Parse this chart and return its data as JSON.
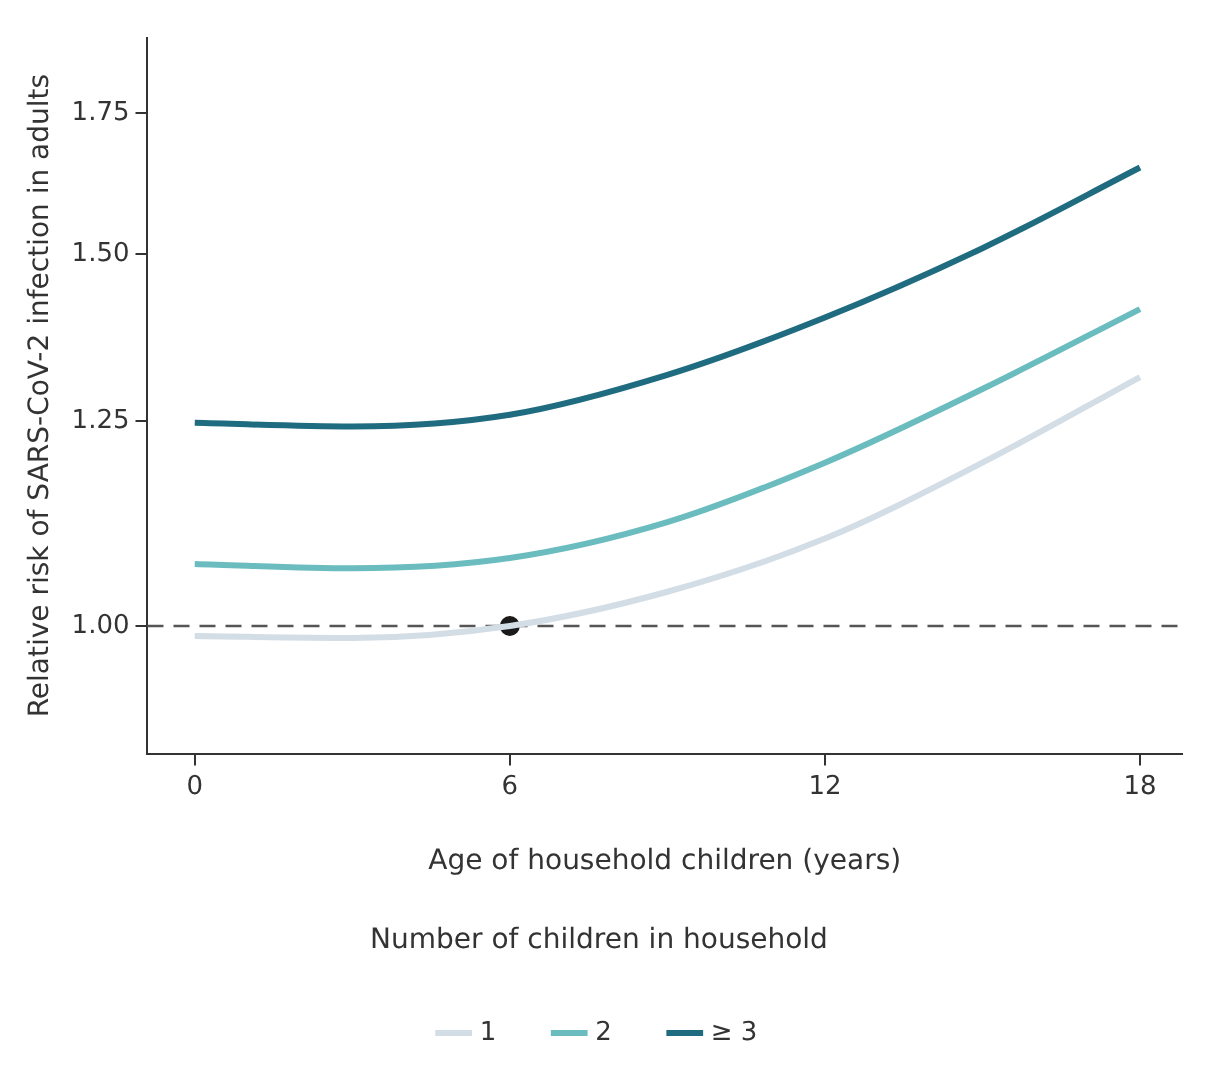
{
  "chart_data": {
    "type": "line",
    "xlabel": "Age of household children (years)",
    "ylabel": "Relative risk of SARS-CoV-2 infection in adults",
    "legend_title": "Number of children in household",
    "legend": "bottom",
    "log": "y",
    "grid": false,
    "line_style": "solid",
    "marker": "none",
    "xlim": [
      -0.9,
      18.8
    ],
    "xticks": [
      0,
      6,
      12,
      18
    ],
    "ylim": [
      0.87,
      1.9
    ],
    "yticks": [
      {
        "value": 1,
        "label": "1.00"
      },
      {
        "value": 1.25,
        "label": "1.25"
      },
      {
        "value": 1.5,
        "label": "1.50"
      },
      {
        "value": 1.75,
        "label": "1.75"
      }
    ],
    "ref_lines": [
      {
        "axis": "y",
        "value": 1,
        "color": "#555555",
        "line_style": "dashed"
      }
    ],
    "series": [
      {
        "name": "1",
        "color": "#d3dde6",
        "x": [
          0,
          3,
          6,
          9,
          12,
          15,
          18
        ],
        "values": [
          0.989,
          0.987,
          1.0,
          1.038,
          1.1,
          1.195,
          1.312
        ]
      },
      {
        "name": "2",
        "color": "#6bbcbf",
        "x": [
          0,
          3,
          6,
          9,
          12,
          15,
          18
        ],
        "values": [
          1.07,
          1.065,
          1.077,
          1.12,
          1.195,
          1.295,
          1.413
        ]
      },
      {
        "name": "≥ 3",
        "color": "#1f6b80",
        "x": [
          0,
          3,
          6,
          9,
          12,
          15,
          18
        ],
        "values": [
          1.248,
          1.243,
          1.259,
          1.315,
          1.4,
          1.51,
          1.649
        ]
      },
      {
        "type": "scatter",
        "color": "#1a1a1a",
        "marker": "circle",
        "x": [
          6
        ],
        "values": [
          1.0
        ]
      }
    ]
  }
}
